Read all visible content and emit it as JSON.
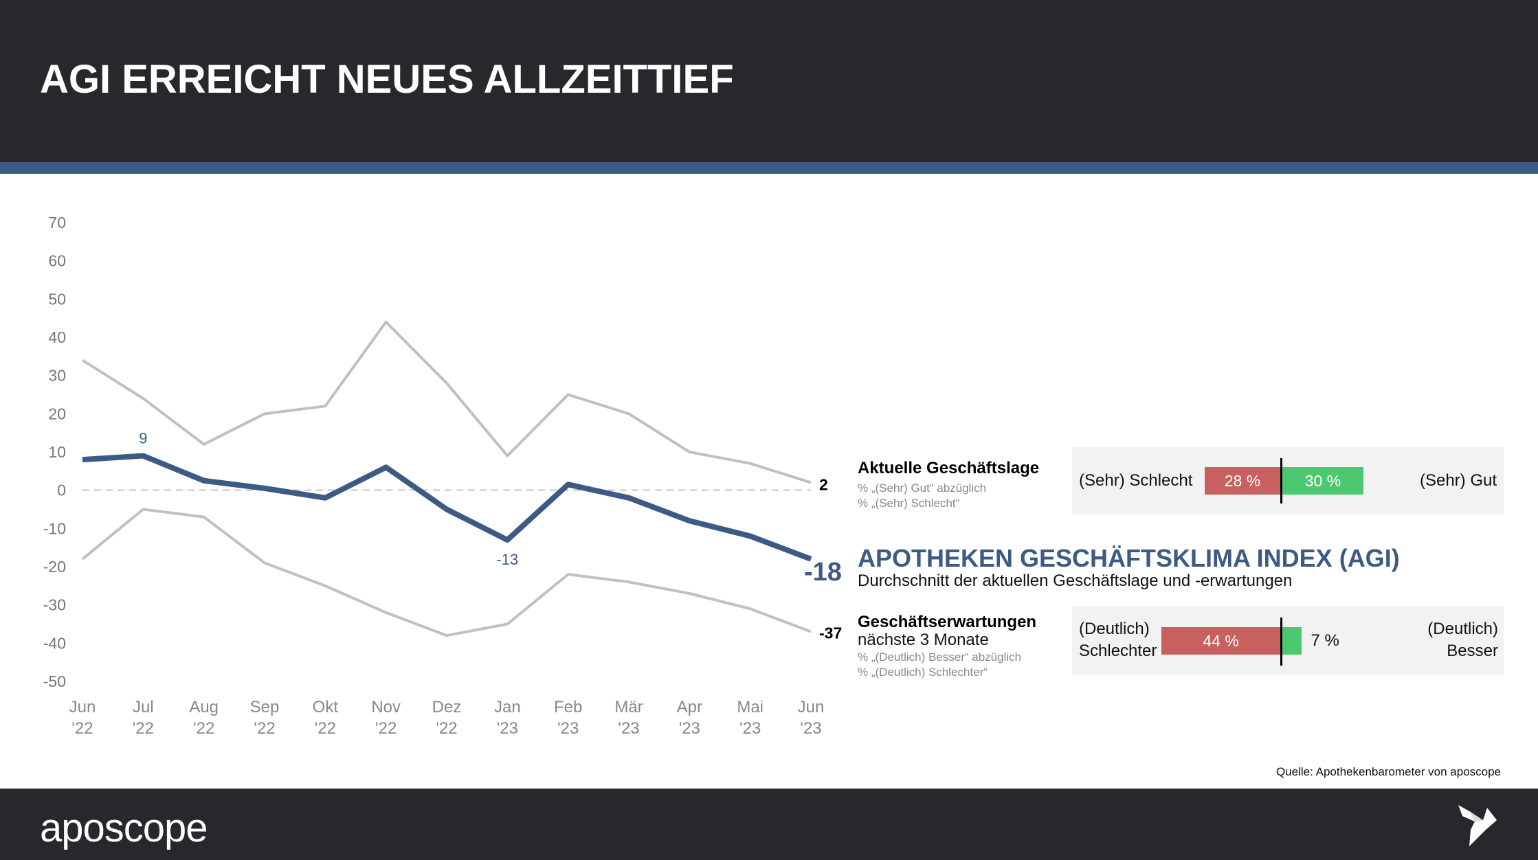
{
  "header": {
    "title": "AGI ERREICHT NEUES ALLZEITTIEF"
  },
  "footer": {
    "brand": "aposcope",
    "logo_icon": "origami-bird-icon"
  },
  "colors": {
    "header_bg": "#27282d",
    "accent_blue": "#3c5a84",
    "neg_red": "#c86060",
    "pos_green": "#4cc870",
    "grey_line": "#c0c0c0"
  },
  "chart_data": {
    "type": "line",
    "categories": [
      "Jun '22",
      "Jul '22",
      "Aug '22",
      "Sep '22",
      "Okt '22",
      "Nov '22",
      "Dez '22",
      "Jan '23",
      "Feb '23",
      "Mär '23",
      "Apr '23",
      "Mai '23",
      "Jun '23"
    ],
    "x_labels_top": [
      "Jun",
      "Jul",
      "Aug",
      "Sep",
      "Okt",
      "Nov",
      "Dez",
      "Jan",
      "Feb",
      "Mär",
      "Apr",
      "Mai",
      "Jun"
    ],
    "x_labels_bottom": [
      "'22",
      "'22",
      "'22",
      "'22",
      "'22",
      "'22",
      "'22",
      "'23",
      "'23",
      "'23",
      "'23",
      "'23",
      "'23"
    ],
    "ylim": [
      -50,
      70
    ],
    "yticks": [
      "70",
      "60",
      "50",
      "40",
      "30",
      "20",
      "10",
      "0",
      "-10",
      "-20",
      "-30",
      "-40",
      "-50"
    ],
    "series": [
      {
        "name": "Aktuelle Geschäftslage",
        "values": [
          34,
          24,
          12,
          20,
          22,
          44,
          28,
          9,
          25,
          20,
          10,
          7,
          2
        ],
        "end_label": "2"
      },
      {
        "name": "AGI",
        "values": [
          8,
          9,
          2.5,
          0.5,
          -2,
          6,
          -5,
          -13,
          1.5,
          -2,
          -8,
          -12,
          -18
        ],
        "labels": {
          "1": "9",
          "7": "-13"
        },
        "end_label": "-18"
      },
      {
        "name": "Geschäftserwartungen",
        "values": [
          -18,
          -5,
          -7,
          -19,
          -25,
          -32,
          -38,
          -35,
          -22,
          -24,
          -27,
          -31,
          -37
        ],
        "end_label": "-37"
      }
    ]
  },
  "panel_current": {
    "title": "Aktuelle  Geschäftslage",
    "note1": "% „(Sehr) Gut“ abzüglich",
    "note2": "% „(Sehr) Schlecht“",
    "left_label": "(Sehr) Schlecht",
    "right_label": "(Sehr) Gut",
    "neg_pct": 28,
    "neg_label": "28 %",
    "pos_pct": 30,
    "pos_label": "30 %"
  },
  "agi": {
    "title": "APOTHEKEN GESCHÄFTSKLIMA INDEX (AGI)",
    "subtitle": "Durchschnitt der aktuellen Geschäftslage und -erwartungen"
  },
  "panel_expect": {
    "title": "Geschäftserwartungen",
    "subtitle": "nächste 3 Monate",
    "note1": "% „(Deutlich) Besser“ abzüglich",
    "note2": "% „(Deutlich) Schlechter“",
    "left_label1": "(Deutlich)",
    "left_label2": "Schlechter",
    "right_label1": "(Deutlich)",
    "right_label2": "Besser",
    "neg_pct": 44,
    "neg_label": "44 %",
    "pos_pct": 7,
    "pos_label": "7 %"
  },
  "source": "Quelle: Apothekenbarometer von aposcope"
}
